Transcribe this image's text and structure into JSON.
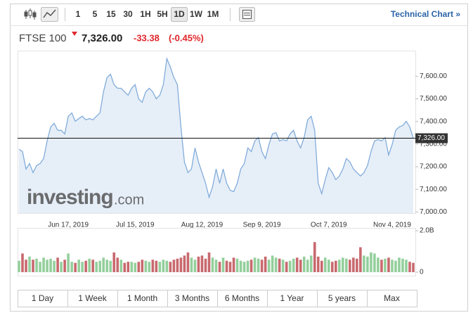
{
  "toolbar": {
    "intervals": [
      "1",
      "5",
      "15",
      "30",
      "1H",
      "5H",
      "1D",
      "1W",
      "1M"
    ],
    "selected": "1D",
    "link": "Technical Chart »"
  },
  "quote": {
    "name": "FTSE 100",
    "price": "7,326.00",
    "change": "-33.38",
    "change_percent": "(-0.45%)"
  },
  "watermark": {
    "brand": "investing",
    "suffix": ".com"
  },
  "chart_data": [
    {
      "type": "area",
      "color": "#7aa7d8",
      "fill_color": "#e6eef8",
      "categories": [
        null,
        null,
        null,
        null,
        null,
        null,
        null,
        null,
        null,
        null,
        null,
        null,
        null,
        null,
        "Jun 17, 2019",
        null,
        null,
        null,
        null,
        null,
        null,
        null,
        null,
        null,
        null,
        null,
        null,
        null,
        null,
        null,
        null,
        null,
        null,
        "Jul 15, 2019",
        null,
        null,
        null,
        null,
        null,
        null,
        null,
        null,
        null,
        null,
        null,
        null,
        null,
        null,
        null,
        null,
        null,
        null,
        "Aug 12, 2019",
        null,
        null,
        null,
        null,
        null,
        null,
        null,
        null,
        null,
        null,
        null,
        null,
        null,
        null,
        null,
        null,
        "Sep 9, 2019",
        null,
        null,
        null,
        null,
        null,
        null,
        null,
        null,
        null,
        null,
        null,
        null,
        null,
        null,
        null,
        null,
        null,
        null,
        "Oct 7, 2019",
        null,
        null,
        null,
        null,
        null,
        null,
        null,
        null,
        null,
        null,
        null,
        null,
        null,
        null,
        null,
        null,
        null,
        "Nov 4, 2019",
        null,
        null,
        null,
        null,
        null,
        null
      ],
      "values": [
        7277,
        7267,
        7190,
        7214,
        7174,
        7205,
        7214,
        7236,
        7314,
        7376,
        7392,
        7361,
        7361,
        7345,
        7423,
        7438,
        7401,
        7413,
        7423,
        7407,
        7413,
        7407,
        7423,
        7438,
        7531,
        7594,
        7609,
        7563,
        7547,
        7547,
        7531,
        7516,
        7547,
        7563,
        7500,
        7485,
        7531,
        7547,
        7531,
        7500,
        7516,
        7563,
        7678,
        7640,
        7594,
        7563,
        7376,
        7221,
        7174,
        7190,
        7283,
        7221,
        7174,
        7127,
        7065,
        7112,
        7190,
        7127,
        7190,
        7127,
        7096,
        7090,
        7127,
        7190,
        7214,
        7283,
        7267,
        7314,
        7329,
        7267,
        7236,
        7298,
        7345,
        7351,
        7314,
        7320,
        7314,
        7345,
        7361,
        7314,
        7283,
        7329,
        7407,
        7423,
        7361,
        7127,
        7081,
        7143,
        7196,
        7174,
        7143,
        7159,
        7190,
        7236,
        7221,
        7190,
        7174,
        7159,
        7174,
        7205,
        7267,
        7314,
        7320,
        7314,
        7329,
        7252,
        7298,
        7361,
        7376,
        7382,
        7401,
        7376,
        7326
      ],
      "ylim": [
        6995,
        7710
      ],
      "yticks": [
        {
          "value": 7000,
          "label": "7,000.00"
        },
        {
          "value": 7100,
          "label": "7,100.00"
        },
        {
          "value": 7200,
          "label": "7,200.00"
        },
        {
          "value": 7300,
          "label": "7,300.00"
        },
        {
          "value": 7400,
          "label": "7,400.00"
        },
        {
          "value": 7500,
          "label": "7,500.00"
        },
        {
          "value": 7600,
          "label": "7,600.00"
        }
      ],
      "last_line": {
        "value": 7326,
        "label": "7,326.00"
      }
    },
    {
      "type": "bar",
      "up_color": "#94cf9c",
      "down_color": "#c8696e",
      "values": [
        0.55,
        0.9,
        0.6,
        0.75,
        0.6,
        0.65,
        0.5,
        0.7,
        0.6,
        0.65,
        0.55,
        0.7,
        0.5,
        0.6,
        0.9,
        0.5,
        0.45,
        0.6,
        0.5,
        0.55,
        0.65,
        0.6,
        0.5,
        0.55,
        0.7,
        0.6,
        0.55,
        0.95,
        0.7,
        0.6,
        0.45,
        0.5,
        0.5,
        0.45,
        0.5,
        0.6,
        0.55,
        0.5,
        0.6,
        0.55,
        0.5,
        0.6,
        0.55,
        0.5,
        0.6,
        0.65,
        0.7,
        0.8,
        0.95,
        0.7,
        0.6,
        0.75,
        0.8,
        0.65,
        0.95,
        0.7,
        0.6,
        0.5,
        0.7,
        0.55,
        0.5,
        0.7,
        0.65,
        0.55,
        0.5,
        0.55,
        0.6,
        0.7,
        0.65,
        0.6,
        0.75,
        0.6,
        0.8,
        0.7,
        0.65,
        0.6,
        0.5,
        0.55,
        0.65,
        0.7,
        0.6,
        0.75,
        0.6,
        0.8,
        1.45,
        0.75,
        0.55,
        0.7,
        0.6,
        0.5,
        0.55,
        0.6,
        0.7,
        0.65,
        0.6,
        0.7,
        0.65,
        1.2,
        0.8,
        0.75,
        0.95,
        0.9,
        0.7,
        0.6,
        0.65,
        0.7,
        0.6,
        0.55,
        0.7,
        0.65,
        0.6,
        0.5,
        0.45
      ],
      "ylim": [
        0,
        2.1
      ],
      "yticks": [
        0,
        {
          "value": 2,
          "label": "2.0B"
        }
      ]
    }
  ],
  "periods": [
    "1 Day",
    "1 Week",
    "1 Month",
    "3 Months",
    "6 Months",
    "1 Year",
    "5 years",
    "Max"
  ]
}
